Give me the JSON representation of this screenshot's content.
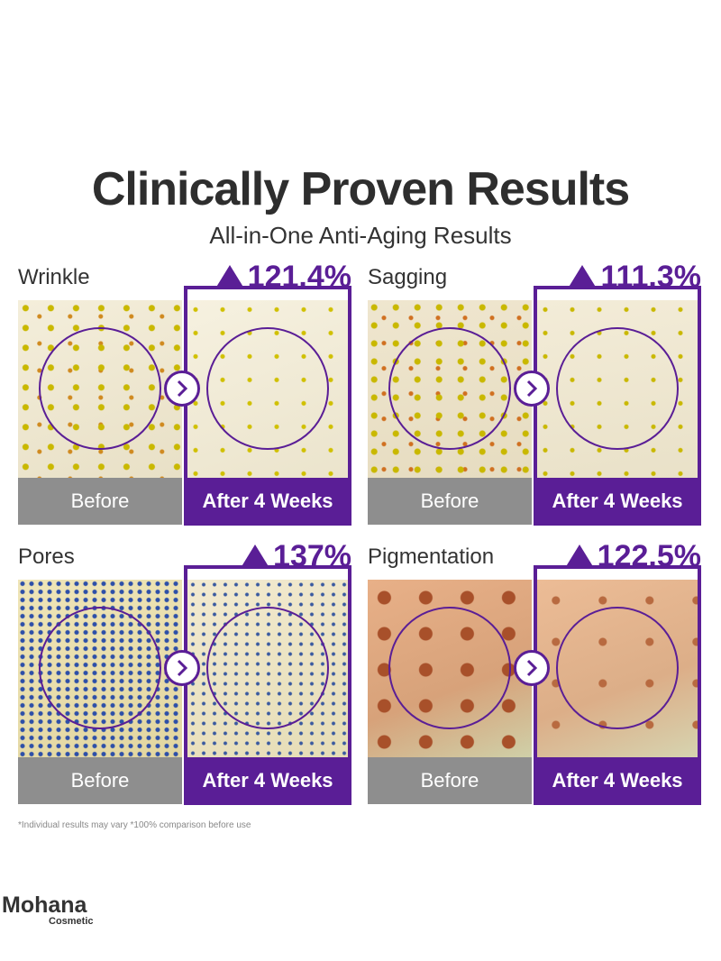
{
  "header": {
    "title": "Clinically Proven Results",
    "subtitle": "All-in-One Anti-Aging Results"
  },
  "panels": [
    {
      "label": "Wrinkle",
      "result": "121.4%",
      "before": "Before",
      "after": "After 4 Weeks"
    },
    {
      "label": "Sagging",
      "result": "111.3%",
      "before": "Before",
      "after": "After 4 Weeks"
    },
    {
      "label": "Pores",
      "result": "137%",
      "before": "Before",
      "after": "After 4 Weeks"
    },
    {
      "label": "Pigmentation",
      "result": "122.5%",
      "before": "Before",
      "after": "After 4 Weeks"
    }
  ],
  "footnote": "*Individual results may vary  *100% comparison before use",
  "brand": {
    "name": "Mohana",
    "tagline": "Cosmetic"
  }
}
